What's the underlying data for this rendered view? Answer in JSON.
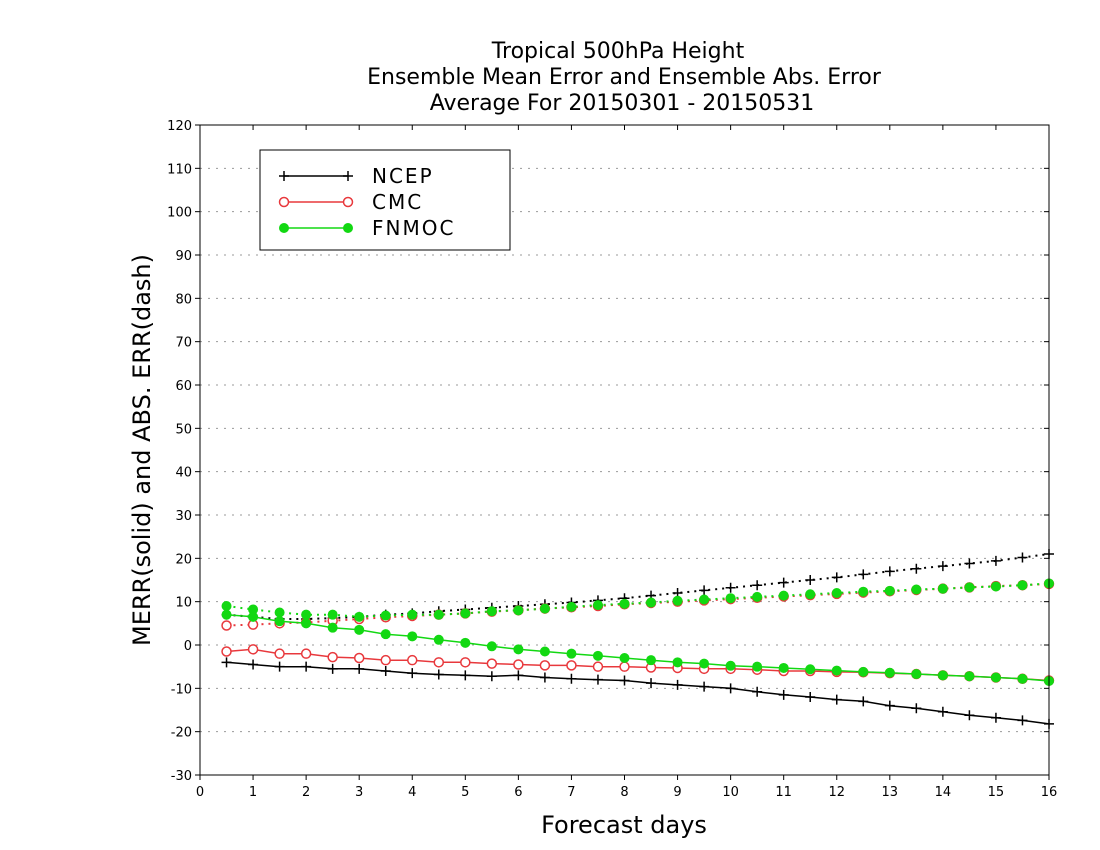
{
  "chart_data": {
    "type": "line",
    "title": [
      "Tropical 500hPa Height",
      "Ensemble Mean Error and Ensemble Abs. Error",
      "Average For 20150301 - 20150531"
    ],
    "xlabel": "Forecast days",
    "ylabel": "MERR(solid) and ABS. ERR(dash)",
    "xlim": [
      0,
      16
    ],
    "ylim": [
      -30,
      120
    ],
    "xticks": [
      "0",
      "1",
      "2",
      "3",
      "4",
      "5",
      "6",
      "7",
      "8",
      "9",
      "10",
      "11",
      "12",
      "13",
      "14",
      "15",
      "16"
    ],
    "yticks": [
      "120",
      "110",
      "100",
      "90",
      "80",
      "70",
      "60",
      "50",
      "40",
      "30",
      "20",
      "10",
      "0",
      "-10",
      "-20",
      "-30"
    ],
    "grid": true,
    "legend_position": "top-left",
    "x": [
      0.5,
      1,
      1.5,
      2,
      2.5,
      3,
      3.5,
      4,
      4.5,
      5,
      5.5,
      6,
      6.5,
      7,
      7.5,
      8,
      8.5,
      9,
      9.5,
      10,
      10.5,
      11,
      11.5,
      12,
      12.5,
      13,
      13.5,
      14,
      14.5,
      15,
      15.5,
      16
    ],
    "series": [
      {
        "name": "NCEP",
        "color": "#000000",
        "marker": "plus",
        "merr": [
          -4,
          -4.5,
          -5,
          -5,
          -5.5,
          -5.5,
          -6,
          -6.5,
          -6.8,
          -7,
          -7.2,
          -7,
          -7.5,
          -7.8,
          -8,
          -8.2,
          -8.8,
          -9.2,
          -9.6,
          -10,
          -10.8,
          -11.5,
          -12,
          -12.6,
          -13,
          -14,
          -14.6,
          -15.4,
          -16.2,
          -16.8,
          -17.4,
          -18.2
        ],
        "abserr": [
          7,
          6.5,
          6,
          6,
          6.2,
          6.5,
          7,
          7.3,
          7.8,
          8.2,
          8.6,
          9,
          9.4,
          9.8,
          10.3,
          10.8,
          11.4,
          12,
          12.6,
          13.2,
          13.8,
          14.4,
          15,
          15.6,
          16.3,
          17,
          17.6,
          18.2,
          18.8,
          19.4,
          20.2,
          21
        ]
      },
      {
        "name": "CMC",
        "color": "#e8383c",
        "marker": "open-circle",
        "merr": [
          -1.5,
          -1,
          -2,
          -2,
          -2.8,
          -3,
          -3.5,
          -3.5,
          -4,
          -4,
          -4.3,
          -4.5,
          -4.7,
          -4.7,
          -5,
          -5,
          -5.2,
          -5.3,
          -5.5,
          -5.5,
          -5.7,
          -6,
          -6,
          -6.2,
          -6.3,
          -6.5,
          -6.7,
          -7,
          -7.2,
          -7.5,
          -7.8,
          -8.2
        ],
        "abserr": [
          4.5,
          4.7,
          5,
          5.2,
          5.6,
          6,
          6.4,
          6.7,
          7,
          7.3,
          7.7,
          8,
          8.4,
          8.7,
          9,
          9.4,
          9.7,
          10,
          10.3,
          10.6,
          10.9,
          11.2,
          11.5,
          11.8,
          12.1,
          12.4,
          12.7,
          13,
          13.3,
          13.6,
          13.8,
          14.1
        ]
      },
      {
        "name": "FNMOC",
        "color": "#12d812",
        "marker": "filled-circle",
        "merr": [
          7,
          6.5,
          5.5,
          5,
          4,
          3.5,
          2.5,
          2,
          1.2,
          0.5,
          -0.3,
          -1,
          -1.5,
          -2,
          -2.5,
          -3,
          -3.5,
          -4,
          -4.3,
          -4.8,
          -5,
          -5.3,
          -5.6,
          -5.9,
          -6.2,
          -6.4,
          -6.7,
          -7,
          -7.2,
          -7.5,
          -7.8,
          -8.3
        ],
        "abserr": [
          9,
          8.2,
          7.5,
          7,
          7,
          6.5,
          6.8,
          7,
          7,
          7.3,
          7.8,
          8,
          8.4,
          8.8,
          9.2,
          9.5,
          9.8,
          10.2,
          10.5,
          10.8,
          11.1,
          11.4,
          11.7,
          12,
          12.3,
          12.5,
          12.8,
          13,
          13.3,
          13.5,
          13.8,
          14.2
        ]
      }
    ]
  }
}
